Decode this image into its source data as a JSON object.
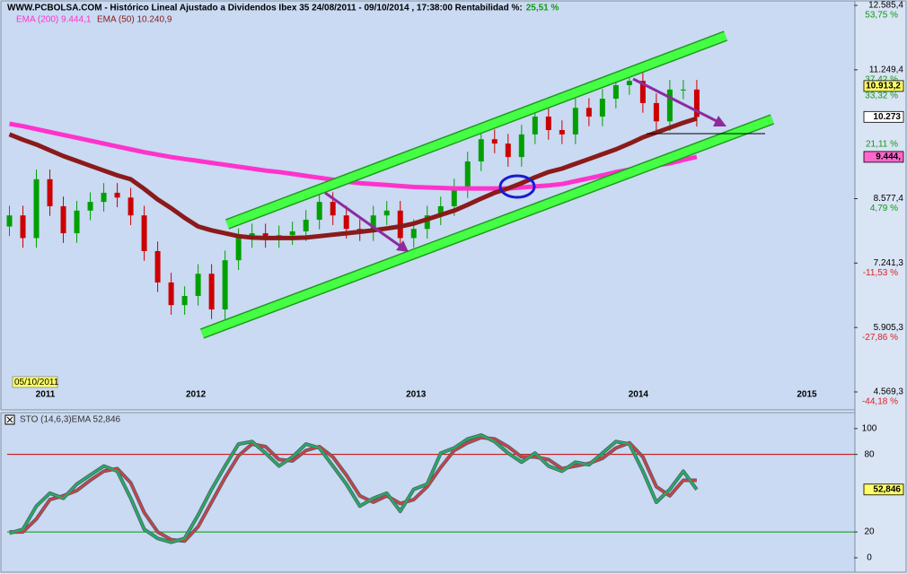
{
  "chart_data": [
    {
      "type": "candlestick",
      "title": "WWW.PCBOLSA.COM - Histórico Lineal  Ajustado a Dividendos Ibex 35 24/08/2011 - 09/10/2014 , 17:38:00 Rentabilidad %:",
      "return_label": "25,51 %",
      "date_label": "05/10/2011",
      "x": [
        2011.64,
        2011.7,
        2011.76,
        2011.82,
        2011.88,
        2011.94,
        2012.0,
        2012.06,
        2012.12,
        2012.18,
        2012.24,
        2012.3,
        2012.36,
        2012.42,
        2012.48,
        2012.54,
        2012.6,
        2012.66,
        2012.72,
        2012.78,
        2012.84,
        2012.9,
        2012.96,
        2013.02,
        2013.08,
        2013.14,
        2013.2,
        2013.26,
        2013.32,
        2013.38,
        2013.44,
        2013.5,
        2013.56,
        2013.62,
        2013.68,
        2013.74,
        2013.8,
        2013.86,
        2013.92,
        2013.98,
        2014.04,
        2014.1,
        2014.16,
        2014.22,
        2014.28,
        2014.34,
        2014.4,
        2014.46,
        2014.52,
        2014.58,
        2014.64,
        2014.7
      ],
      "open": [
        8000,
        8230,
        7760,
        8980,
        8420,
        7860,
        8330,
        8510,
        8700,
        8600,
        8230,
        7490,
        6840,
        6370,
        6560,
        7020,
        6280,
        7300,
        7760,
        7860,
        7760,
        7820,
        7900,
        8140,
        8510,
        8230,
        7950,
        7900,
        8230,
        8330,
        7760,
        7950,
        8230,
        8420,
        8790,
        9350,
        9810,
        9720,
        9440,
        9910,
        10280,
        10000,
        9910,
        10460,
        10280,
        10650,
        10930,
        11020,
        10560,
        10180,
        10840,
        10840
      ],
      "high": [
        8430,
        8430,
        9180,
        9180,
        8620,
        8530,
        8710,
        8900,
        8900,
        8800,
        8430,
        7690,
        7040,
        6760,
        7220,
        7220,
        7500,
        7960,
        8060,
        8060,
        8020,
        8100,
        8340,
        8710,
        8710,
        8430,
        8150,
        8430,
        8530,
        8530,
        8150,
        8430,
        8620,
        8990,
        9550,
        10010,
        10010,
        9920,
        10110,
        10480,
        10480,
        10200,
        10660,
        10660,
        10850,
        11130,
        11220,
        11220,
        10760,
        11040,
        11040,
        11040
      ],
      "low": [
        7800,
        7560,
        7560,
        8220,
        7660,
        7660,
        8130,
        8310,
        8400,
        8030,
        7290,
        6640,
        6170,
        6170,
        6360,
        6080,
        6080,
        7100,
        7560,
        7560,
        7560,
        7620,
        7700,
        7940,
        8030,
        7750,
        7700,
        7700,
        8030,
        7560,
        7560,
        7750,
        8030,
        8220,
        8590,
        9150,
        9520,
        9240,
        9240,
        9710,
        9800,
        9710,
        9710,
        10080,
        10080,
        10450,
        10730,
        10360,
        9980,
        9980,
        10640,
        10073
      ],
      "close": [
        8230,
        7760,
        8980,
        8420,
        7860,
        8330,
        8510,
        8700,
        8600,
        8230,
        7490,
        6840,
        6370,
        6560,
        7020,
        6280,
        7300,
        7760,
        7860,
        7760,
        7820,
        7900,
        8140,
        8510,
        8230,
        7950,
        7900,
        8230,
        8330,
        7760,
        7950,
        8230,
        8420,
        8790,
        9350,
        9810,
        9720,
        9440,
        9910,
        10280,
        10000,
        9910,
        10460,
        10280,
        10650,
        10930,
        11020,
        10560,
        10180,
        10840,
        10840,
        10273
      ],
      "up_color": "#00a000",
      "down_color": "#cc0000",
      "series": [
        {
          "name": "EMA (200) 9.444,1",
          "color": "#ff33cc",
          "values": [
            10130,
            10080,
            10020,
            9960,
            9900,
            9840,
            9780,
            9720,
            9660,
            9600,
            9540,
            9490,
            9440,
            9400,
            9360,
            9320,
            9280,
            9240,
            9200,
            9160,
            9130,
            9090,
            9050,
            9010,
            8970,
            8930,
            8900,
            8880,
            8860,
            8840,
            8820,
            8810,
            8800,
            8790,
            8790,
            8790,
            8790,
            8790,
            8810,
            8830,
            8850,
            8880,
            8940,
            9000,
            9060,
            9130,
            9180,
            9230,
            9270,
            9310,
            9380,
            9444
          ]
        },
        {
          "name": "EMA (50) 10.240,9",
          "color": "#8b1a1a",
          "values": [
            9910,
            9800,
            9700,
            9580,
            9460,
            9360,
            9260,
            9160,
            9060,
            8980,
            8780,
            8560,
            8380,
            8180,
            8000,
            7920,
            7860,
            7800,
            7770,
            7760,
            7760,
            7760,
            7770,
            7800,
            7830,
            7860,
            7890,
            7920,
            7960,
            8000,
            8060,
            8150,
            8240,
            8330,
            8450,
            8580,
            8700,
            8790,
            8900,
            9020,
            9130,
            9200,
            9300,
            9400,
            9500,
            9600,
            9720,
            9850,
            9950,
            10050,
            10150,
            10240
          ]
        }
      ],
      "xlim": [
        2011.63,
        2015.4
      ],
      "xticks": [
        {
          "value": 2011.8,
          "label": "2011"
        },
        {
          "value": 2012.47,
          "label": "2012"
        },
        {
          "value": 2013.45,
          "label": "2013"
        },
        {
          "value": 2014.44,
          "label": "2014"
        },
        {
          "value": 2015.19,
          "label": "2015"
        }
      ],
      "ylim": [
        4569.3,
        12585.4
      ],
      "yticks": [
        {
          "value": 12585.4,
          "label": "12.585,4"
        },
        {
          "value": 11249.4,
          "label": "11.249,4"
        },
        {
          "value": 8577.4,
          "label": "8.577,4"
        },
        {
          "value": 7241.3,
          "label": "7.241,3"
        },
        {
          "value": 5905.3,
          "label": "5.905,3"
        },
        {
          "value": 4569.3,
          "label": "4.569,3"
        }
      ],
      "y2lim": [
        -44.18,
        53.75
      ],
      "y2ticks": [
        {
          "value": 53.75,
          "label": "53,75 %"
        },
        {
          "value": 37.42,
          "label": "37,42 %"
        },
        {
          "value": 33.32,
          "label": "33,32 %"
        },
        {
          "value": 21.11,
          "label": "21,11 %"
        },
        {
          "value": 4.79,
          "label": "4,79 %"
        },
        {
          "value": -11.53,
          "label": "-11,53 %"
        },
        {
          "value": -27.86,
          "label": "-27,86 %"
        },
        {
          "value": -44.18,
          "label": "-44,18 %"
        }
      ],
      "value_boxes": [
        {
          "value": 10913.2,
          "label": "10.913,2",
          "color": "#ffff66"
        },
        {
          "value": 10273,
          "label": "10.273",
          "color": "#ffffff"
        },
        {
          "value": 9444,
          "label": "9.444,",
          "color": "#ff66cc"
        }
      ]
    },
    {
      "type": "line",
      "title": "STO (14,6,3)EMA 52,846",
      "x": [
        2011.64,
        2011.7,
        2011.76,
        2011.82,
        2011.88,
        2011.94,
        2012.0,
        2012.06,
        2012.12,
        2012.18,
        2012.24,
        2012.3,
        2012.36,
        2012.42,
        2012.48,
        2012.54,
        2012.6,
        2012.66,
        2012.72,
        2012.78,
        2012.84,
        2012.9,
        2012.96,
        2013.02,
        2013.08,
        2013.14,
        2013.2,
        2013.26,
        2013.32,
        2013.38,
        2013.44,
        2013.5,
        2013.56,
        2013.62,
        2013.68,
        2013.74,
        2013.8,
        2013.86,
        2013.92,
        2013.98,
        2014.04,
        2014.1,
        2014.16,
        2014.22,
        2014.28,
        2014.34,
        2014.4,
        2014.46,
        2014.52,
        2014.58,
        2014.64,
        2014.7
      ],
      "series": [
        {
          "color": "#d04040",
          "values": [
            20,
            20,
            30,
            45,
            48,
            52,
            60,
            67,
            69,
            58,
            35,
            20,
            14,
            13,
            24,
            43,
            62,
            79,
            88,
            86,
            76,
            75,
            83,
            86,
            78,
            64,
            48,
            43,
            48,
            42,
            45,
            55,
            70,
            83,
            89,
            93,
            92,
            86,
            78,
            78,
            76,
            69,
            71,
            73,
            77,
            85,
            89,
            78,
            55,
            48,
            60,
            60
          ]
        },
        {
          "color": "#20b060",
          "values": [
            19,
            22,
            40,
            50,
            46,
            57,
            64,
            71,
            67,
            46,
            22,
            15,
            12,
            15,
            33,
            53,
            71,
            88,
            90,
            81,
            71,
            78,
            88,
            85,
            71,
            57,
            40,
            46,
            50,
            36,
            53,
            57,
            81,
            85,
            92,
            95,
            90,
            81,
            74,
            81,
            71,
            67,
            74,
            72,
            81,
            90,
            88,
            67,
            43,
            53,
            67,
            52.846
          ]
        }
      ],
      "xlim": [
        2011.63,
        2015.4
      ],
      "ylim": [
        -7,
        111
      ],
      "yticks": [
        0,
        20,
        80,
        100
      ],
      "levels": [
        {
          "value": 80,
          "color": "#cc0000"
        },
        {
          "value": 20,
          "color": "#009900"
        }
      ],
      "value_box": {
        "value": 52.846,
        "label": "52,846",
        "color": "#ffff66"
      }
    }
  ]
}
